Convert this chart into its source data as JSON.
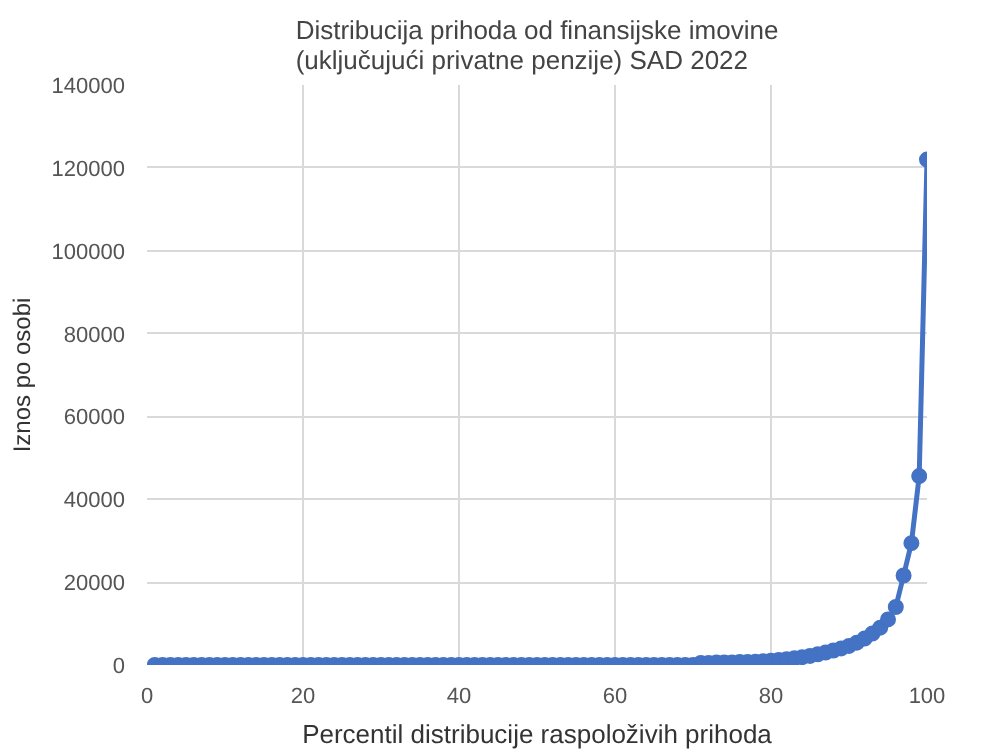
{
  "chart_data": {
    "type": "line",
    "title": "Distribucija prihoda od finansijske imovine\n(uključujući privatne penzije) SAD 2022",
    "xlabel": "Percentil distribucije raspoloživih prihoda",
    "ylabel": "Iznos po osobi",
    "x": [
      1,
      2,
      3,
      4,
      5,
      6,
      7,
      8,
      9,
      10,
      11,
      12,
      13,
      14,
      15,
      16,
      17,
      18,
      19,
      20,
      21,
      22,
      23,
      24,
      25,
      26,
      27,
      28,
      29,
      30,
      31,
      32,
      33,
      34,
      35,
      36,
      37,
      38,
      39,
      40,
      41,
      42,
      43,
      44,
      45,
      46,
      47,
      48,
      49,
      50,
      51,
      52,
      53,
      54,
      55,
      56,
      57,
      58,
      59,
      60,
      61,
      62,
      63,
      64,
      65,
      66,
      67,
      68,
      69,
      70,
      71,
      72,
      73,
      74,
      75,
      76,
      77,
      78,
      79,
      80,
      81,
      82,
      83,
      84,
      85,
      86,
      87,
      88,
      89,
      90,
      91,
      92,
      93,
      94,
      95,
      96,
      97,
      98,
      99,
      100
    ],
    "series": [
      {
        "color": "#4472c4",
        "values": [
          0,
          0,
          0,
          0,
          0,
          0,
          0,
          0,
          0,
          0,
          0,
          0,
          0,
          0,
          0,
          0,
          0,
          0,
          0,
          0,
          0,
          0,
          0,
          0,
          0,
          0,
          0,
          0,
          0,
          0,
          0,
          0,
          0,
          0,
          0,
          0,
          0,
          0,
          0,
          0,
          0,
          0,
          0,
          0,
          0,
          0,
          0,
          0,
          0,
          0,
          0,
          0,
          0,
          0,
          0,
          0,
          0,
          0,
          0,
          0,
          0,
          0,
          0,
          0,
          0,
          0,
          0,
          0,
          0,
          0,
          500,
          500,
          600,
          600,
          600,
          700,
          700,
          800,
          900,
          1000,
          1200,
          1400,
          1600,
          1900,
          2200,
          2600,
          3000,
          3500,
          4000,
          4600,
          5400,
          6400,
          7600,
          9000,
          11000,
          14000,
          21600,
          29400,
          45600,
          122000
        ]
      }
    ],
    "xlim": [
      0,
      100
    ],
    "xticks": [
      0,
      20,
      40,
      60,
      80,
      100
    ],
    "ylim": [
      0,
      140000
    ],
    "yticks": [
      0,
      20000,
      40000,
      60000,
      80000,
      100000,
      120000,
      140000
    ],
    "grid": true,
    "marker": "circle",
    "line_style": "solid"
  }
}
